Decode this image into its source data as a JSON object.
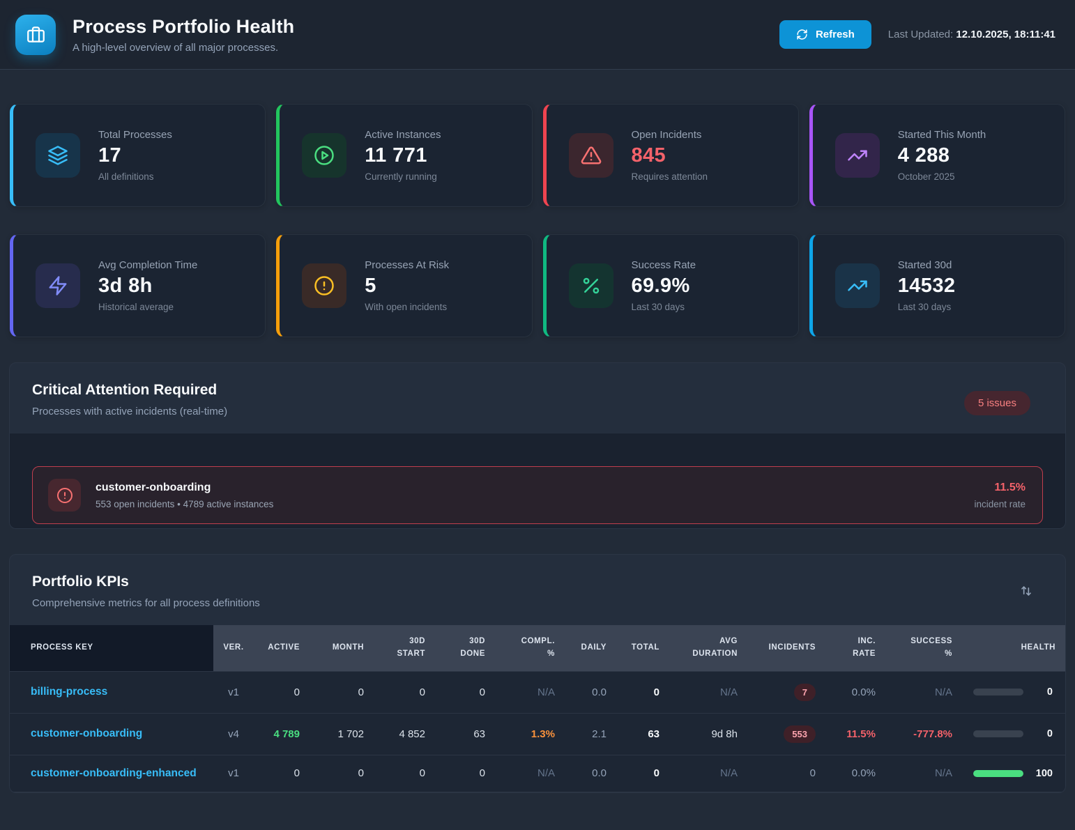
{
  "header": {
    "title": "Process Portfolio Health",
    "subtitle": "A high-level overview of all major processes.",
    "refresh_label": "Refresh",
    "last_updated_label": "Last Updated:",
    "last_updated_value": "12.10.2025, 18:11:41"
  },
  "stat_cards": [
    {
      "label": "Total Processes",
      "value": "17",
      "sub": "All definitions",
      "icon": "layers-icon",
      "accent": "#38bdf8",
      "icon_color": "#38bdf8",
      "icon_bg": "#17344a",
      "value_color": "#f8fafc"
    },
    {
      "label": "Active Instances",
      "value": "11 771",
      "sub": "Currently running",
      "icon": "play-circle-icon",
      "accent": "#22c55e",
      "icon_color": "#4ade80",
      "icon_bg": "#16342c",
      "value_color": "#f8fafc"
    },
    {
      "label": "Open Incidents",
      "value": "845",
      "sub": "Requires attention",
      "icon": "alert-triangle-icon",
      "accent": "#ef4450",
      "icon_color": "#f87171",
      "icon_bg": "#3b262e",
      "value_color": "#f4626a"
    },
    {
      "label": "Started This Month",
      "value": "4 288",
      "sub": "October 2025",
      "icon": "trending-up-icon",
      "accent": "#a855f7",
      "icon_color": "#c084fc",
      "icon_bg": "#32254a",
      "value_color": "#f8fafc"
    },
    {
      "label": "Avg Completion Time",
      "value": "3d 8h",
      "sub": "Historical average",
      "icon": "zap-icon",
      "accent": "#6366f1",
      "icon_color": "#818cf8",
      "icon_bg": "#272c4d",
      "value_color": "#f8fafc"
    },
    {
      "label": "Processes At Risk",
      "value": "5",
      "sub": "With open incidents",
      "icon": "alert-circle-icon",
      "accent": "#f59e0b",
      "icon_color": "#fbbf24",
      "icon_bg": "#392a27",
      "value_color": "#f8fafc"
    },
    {
      "label": "Success Rate",
      "value": "69.9%",
      "sub": "Last 30 days",
      "icon": "percent-icon",
      "accent": "#10b981",
      "icon_color": "#34d399",
      "icon_bg": "#143430",
      "value_color": "#f8fafc"
    },
    {
      "label": "Started 30d",
      "value": "14532",
      "sub": "Last 30 days",
      "icon": "trending-up-icon",
      "accent": "#0ea5e9",
      "icon_color": "#38bdf8",
      "icon_bg": "#1a3348",
      "value_color": "#f8fafc"
    }
  ],
  "critical": {
    "title": "Critical Attention Required",
    "subtitle": "Processes with active incidents (real-time)",
    "issues_badge": "5 issues",
    "alerts": [
      {
        "name": "customer-onboarding",
        "details": "553 open incidents • 4789 active instances",
        "rate": "11.5%",
        "rate_label": "incident rate"
      }
    ]
  },
  "kpis": {
    "title": "Portfolio KPIs",
    "subtitle": "Comprehensive metrics for all process definitions",
    "columns": [
      "PROCESS KEY",
      "VER.",
      "ACTIVE",
      "MONTH",
      "30D\nSTART",
      "30D\nDONE",
      "COMPL.\n%",
      "DAILY",
      "TOTAL",
      "AVG\nDURATION",
      "INCIDENTS",
      "INC.\nRATE",
      "SUCCESS\n%",
      "HEALTH"
    ],
    "rows": [
      {
        "cells": [
          {
            "t": "billing-process",
            "s": "key"
          },
          {
            "t": "v1",
            "s": "version"
          },
          {
            "t": "0"
          },
          {
            "t": "0"
          },
          {
            "t": "0"
          },
          {
            "t": "0"
          },
          {
            "t": "N/A",
            "s": "na"
          },
          {
            "t": "0.0",
            "s": "muted"
          },
          {
            "t": "0",
            "s": "strong"
          },
          {
            "t": "N/A",
            "s": "na"
          },
          {
            "t": "7",
            "s": "badge"
          },
          {
            "t": "0.0%",
            "s": "muted"
          },
          {
            "t": "N/A",
            "s": "na"
          }
        ],
        "health": {
          "pct": 0,
          "label": "0"
        }
      },
      {
        "cells": [
          {
            "t": "customer-onboarding",
            "s": "key"
          },
          {
            "t": "v4",
            "s": "version"
          },
          {
            "t": "4 789",
            "s": "positive"
          },
          {
            "t": "1 702"
          },
          {
            "t": "4 852"
          },
          {
            "t": "63"
          },
          {
            "t": "1.3%",
            "s": "warning"
          },
          {
            "t": "2.1",
            "s": "muted"
          },
          {
            "t": "63",
            "s": "strong"
          },
          {
            "t": "9d 8h"
          },
          {
            "t": "553",
            "s": "badge"
          },
          {
            "t": "11.5%",
            "s": "critical"
          },
          {
            "t": "-777.8%",
            "s": "critical"
          }
        ],
        "health": {
          "pct": 0,
          "label": "0"
        }
      },
      {
        "cells": [
          {
            "t": "customer-onboarding-enhanced",
            "s": "key"
          },
          {
            "t": "v1",
            "s": "version"
          },
          {
            "t": "0"
          },
          {
            "t": "0"
          },
          {
            "t": "0"
          },
          {
            "t": "0"
          },
          {
            "t": "N/A",
            "s": "na"
          },
          {
            "t": "0.0",
            "s": "muted"
          },
          {
            "t": "0",
            "s": "strong"
          },
          {
            "t": "N/A",
            "s": "na"
          },
          {
            "t": "0",
            "s": "muted"
          },
          {
            "t": "0.0%",
            "s": "muted"
          },
          {
            "t": "N/A",
            "s": "na"
          }
        ],
        "health": {
          "pct": 100,
          "label": "100"
        }
      }
    ]
  }
}
